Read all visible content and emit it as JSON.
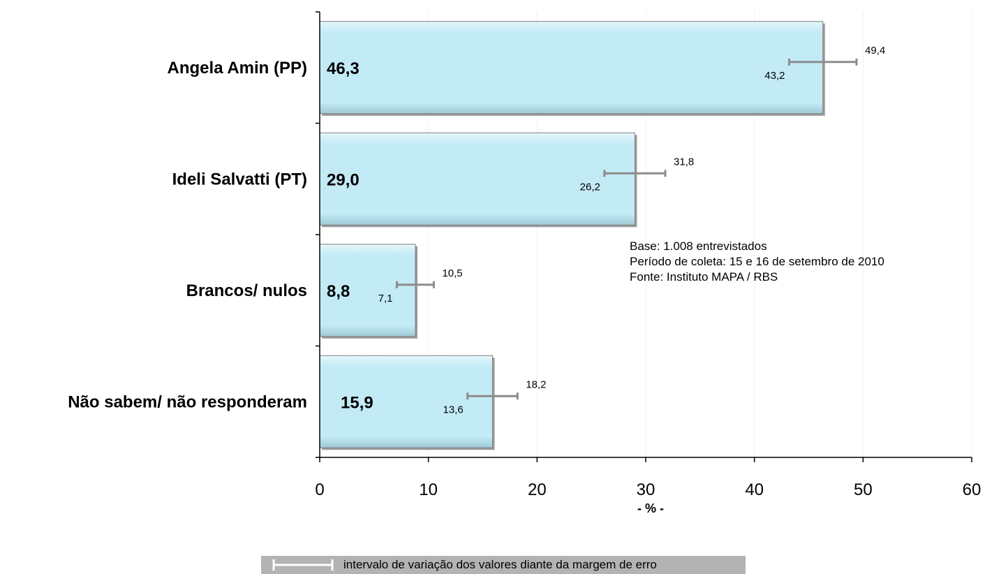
{
  "chart_data": {
    "type": "bar",
    "orientation": "horizontal",
    "categories": [
      "Angela Amin (PP)",
      "Ideli Salvatti (PT)",
      "Brancos/ nulos",
      "Não sabem/ não responderam"
    ],
    "values": [
      46.3,
      29.0,
      8.8,
      15.9
    ],
    "value_labels": [
      "46,3",
      "29,0",
      "8,8",
      "15,9"
    ],
    "error_low": [
      43.2,
      26.2,
      7.1,
      13.6
    ],
    "error_low_labels": [
      "43,2",
      "26,2",
      "7,1",
      "13,6"
    ],
    "error_high": [
      49.4,
      31.8,
      10.5,
      18.2
    ],
    "error_high_labels": [
      "49,4",
      "31,8",
      "10,5",
      "18,2"
    ],
    "xlim": [
      0,
      60
    ],
    "xticks": [
      0,
      10,
      20,
      30,
      40,
      50,
      60
    ],
    "xlabel": "- % -",
    "grid": "vertical dotted",
    "colors": {
      "bar_fill": "#c3ebf6",
      "bar_edge": "#7f7f7f",
      "error_bar": "#8c8c8c",
      "legend_bg": "#b3b3b3"
    }
  },
  "notes": [
    "Base: 1.008 entrevistados",
    "Período de coleta: 15 e 16 de setembro de 2010",
    "Fonte: Instituto MAPA / RBS"
  ],
  "legend": {
    "text": "intervalo de variação dos valores diante da margem de erro",
    "icon": "error-bar-icon"
  }
}
